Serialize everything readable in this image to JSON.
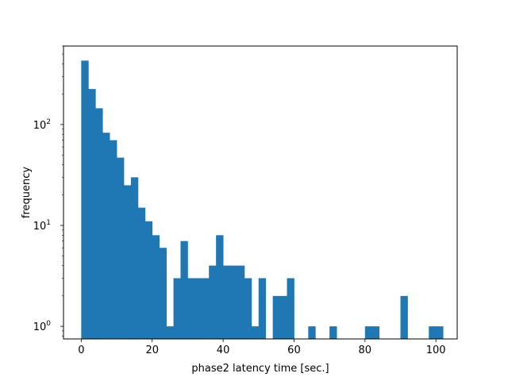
{
  "chart_data": {
    "type": "bar",
    "subtype": "histogram",
    "title": "",
    "xlabel": "phase2 latency time [sec.]",
    "ylabel": "frequency",
    "yscale": "log",
    "xlim": [
      -5,
      106
    ],
    "ylim": [
      0.75,
      600
    ],
    "grid": false,
    "legend": "none",
    "bar_color": "#1f77b4",
    "bin_edges": [
      0,
      2,
      4,
      6,
      8,
      10,
      12,
      14,
      16,
      18,
      20,
      22,
      24,
      26,
      28,
      30,
      32,
      34,
      36,
      38,
      40,
      42,
      44,
      46,
      48,
      50,
      52,
      54,
      56,
      58,
      60,
      62,
      64,
      66,
      68,
      70,
      72,
      74,
      76,
      78,
      80,
      82,
      84,
      86,
      88,
      90,
      92,
      94,
      96,
      98,
      100,
      102
    ],
    "values": [
      430,
      225,
      145,
      83,
      70,
      47,
      25,
      30,
      15,
      11,
      8,
      6,
      1,
      3,
      7,
      3,
      3,
      3,
      4,
      8,
      4,
      4,
      4,
      3,
      1,
      3,
      0,
      2,
      2,
      3,
      0,
      0,
      1,
      0,
      0,
      1,
      0,
      0,
      0,
      0,
      1,
      1,
      0,
      0,
      0,
      2,
      0,
      0,
      0,
      1,
      1
    ],
    "x_ticks": [
      {
        "value": 0,
        "label": "0"
      },
      {
        "value": 20,
        "label": "20"
      },
      {
        "value": 40,
        "label": "40"
      },
      {
        "value": 60,
        "label": "60"
      },
      {
        "value": 80,
        "label": "80"
      },
      {
        "value": 100,
        "label": "100"
      }
    ],
    "y_ticks": [
      {
        "value": 1,
        "base": "10",
        "exp": "0"
      },
      {
        "value": 10,
        "base": "10",
        "exp": "1"
      },
      {
        "value": 100,
        "base": "10",
        "exp": "2"
      }
    ]
  }
}
